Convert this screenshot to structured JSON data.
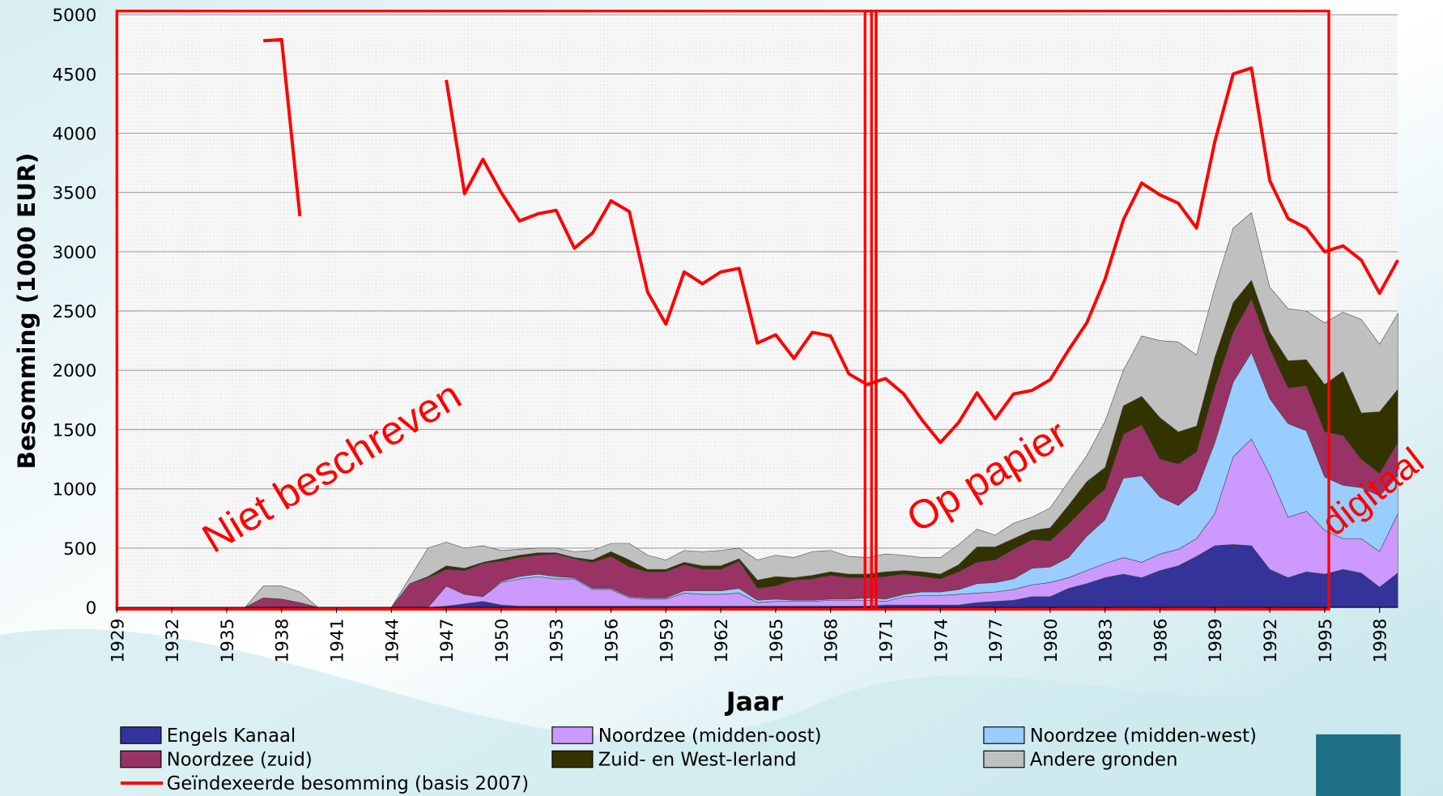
{
  "chart_data": {
    "type": "stacked-area",
    "y_label": "Besomming (1000 EUR)",
    "x_label": "Jaar",
    "annotations": [
      "Niet beschreven",
      "Op papier",
      "digitaal"
    ],
    "x": [
      1929,
      1930,
      1931,
      1932,
      1933,
      1934,
      1935,
      1936,
      1937,
      1938,
      1939,
      1940,
      1941,
      1942,
      1943,
      1944,
      1945,
      1946,
      1947,
      1948,
      1949,
      1950,
      1951,
      1952,
      1953,
      1954,
      1955,
      1956,
      1957,
      1958,
      1959,
      1960,
      1961,
      1962,
      1963,
      1964,
      1965,
      1966,
      1967,
      1968,
      1969,
      1970,
      1971,
      1972,
      1973,
      1974,
      1975,
      1976,
      1977,
      1978,
      1979,
      1980,
      1981,
      1982,
      1983,
      1984,
      1985,
      1986,
      1987,
      1988,
      1989,
      1990,
      1991,
      1992,
      1993,
      1994,
      1995,
      1996,
      1997,
      1998,
      1999
    ],
    "xlim": [
      1929,
      1999
    ],
    "xticks": [
      1929,
      1932,
      1935,
      1938,
      1941,
      1944,
      1947,
      1950,
      1953,
      1956,
      1959,
      1962,
      1965,
      1968,
      1971,
      1974,
      1977,
      1980,
      1983,
      1986,
      1989,
      1992,
      1995,
      1998
    ],
    "ylim": [
      0,
      5000
    ],
    "yticks": [
      0,
      500,
      1000,
      1500,
      2000,
      2500,
      3000,
      3500,
      4000,
      4500,
      5000
    ],
    "grid": true,
    "series": [
      {
        "name": "Engels Kanaal",
        "color": "#333399",
        "values": [
          0,
          0,
          0,
          0,
          0,
          0,
          0,
          0,
          0,
          0,
          0,
          0,
          0,
          0,
          0,
          0,
          0,
          0,
          10,
          30,
          50,
          20,
          10,
          10,
          10,
          10,
          10,
          10,
          10,
          10,
          10,
          10,
          10,
          10,
          10,
          10,
          10,
          10,
          10,
          10,
          10,
          10,
          20,
          20,
          20,
          20,
          20,
          40,
          50,
          60,
          90,
          90,
          160,
          200,
          250,
          280,
          250,
          310,
          350,
          430,
          520,
          530,
          520,
          320,
          250,
          300,
          280,
          320,
          290,
          170,
          290
        ]
      },
      {
        "name": "Noordzee (midden-oost)",
        "color": "#cc99ff",
        "values": [
          0,
          0,
          0,
          0,
          0,
          0,
          0,
          0,
          0,
          0,
          0,
          0,
          0,
          0,
          0,
          0,
          0,
          0,
          170,
          80,
          40,
          190,
          230,
          250,
          230,
          230,
          140,
          140,
          70,
          60,
          60,
          110,
          100,
          100,
          110,
          30,
          40,
          40,
          40,
          50,
          50,
          50,
          30,
          70,
          80,
          80,
          90,
          80,
          80,
          90,
          100,
          120,
          90,
          110,
          120,
          140,
          130,
          140,
          140,
          150,
          270,
          740,
          900,
          800,
          510,
          510,
          370,
          260,
          290,
          300,
          500
        ]
      },
      {
        "name": "Noordzee (midden-west)",
        "color": "#99ccff",
        "values": [
          0,
          0,
          0,
          0,
          0,
          0,
          0,
          0,
          0,
          0,
          0,
          0,
          0,
          0,
          0,
          0,
          0,
          0,
          0,
          0,
          0,
          10,
          20,
          20,
          20,
          10,
          10,
          10,
          10,
          10,
          10,
          20,
          30,
          30,
          40,
          20,
          20,
          10,
          10,
          10,
          10,
          20,
          20,
          20,
          30,
          30,
          40,
          80,
          80,
          90,
          140,
          130,
          170,
          290,
          370,
          670,
          730,
          480,
          370,
          410,
          600,
          630,
          730,
          640,
          790,
          680,
          450,
          450,
          430,
          470,
          320
        ]
      },
      {
        "name": "Noordzee (zuid)",
        "color": "#993366",
        "values": [
          0,
          0,
          0,
          0,
          0,
          0,
          0,
          0,
          80,
          70,
          40,
          0,
          0,
          0,
          0,
          0,
          200,
          250,
          140,
          200,
          280,
          170,
          160,
          160,
          190,
          160,
          220,
          270,
          250,
          220,
          220,
          220,
          180,
          180,
          230,
          100,
          110,
          170,
          180,
          200,
          180,
          170,
          190,
          170,
          130,
          110,
          150,
          180,
          190,
          250,
          240,
          220,
          280,
          260,
          260,
          370,
          430,
          320,
          350,
          320,
          460,
          420,
          450,
          420,
          300,
          380,
          380,
          420,
          240,
          190,
          280
        ]
      },
      {
        "name": "Zuid- en West-Ierland",
        "color": "#333300",
        "values": [
          0,
          0,
          0,
          0,
          0,
          0,
          0,
          0,
          0,
          0,
          0,
          0,
          0,
          0,
          0,
          0,
          0,
          10,
          30,
          20,
          10,
          20,
          20,
          20,
          10,
          10,
          20,
          40,
          60,
          20,
          20,
          20,
          30,
          30,
          20,
          70,
          80,
          20,
          30,
          30,
          30,
          30,
          40,
          30,
          40,
          40,
          60,
          130,
          110,
          90,
          80,
          110,
          160,
          200,
          180,
          240,
          240,
          350,
          270,
          220,
          260,
          250,
          160,
          140,
          230,
          220,
          400,
          540,
          390,
          520,
          450
        ]
      },
      {
        "name": "Andere gronden",
        "color": "#c0c0c0",
        "values": [
          0,
          0,
          0,
          0,
          0,
          0,
          0,
          0,
          100,
          110,
          90,
          0,
          0,
          0,
          0,
          0,
          50,
          240,
          200,
          170,
          140,
          70,
          50,
          40,
          40,
          50,
          80,
          70,
          140,
          120,
          80,
          100,
          120,
          130,
          90,
          170,
          180,
          170,
          200,
          180,
          150,
          140,
          150,
          130,
          120,
          140,
          170,
          150,
          100,
          130,
          110,
          170,
          200,
          220,
          390,
          300,
          510,
          650,
          760,
          600,
          590,
          630,
          570,
          380,
          440,
          410,
          520,
          500,
          790,
          570,
          640
        ]
      },
      {
        "name": "Geïndexeerde besomming (basis 2007)",
        "color": "#ff0000",
        "type": "line",
        "values": [
          null,
          null,
          null,
          null,
          null,
          null,
          null,
          null,
          4780,
          4790,
          3300,
          null,
          null,
          null,
          null,
          null,
          null,
          null,
          4450,
          3490,
          3780,
          3500,
          3260,
          3320,
          3350,
          3030,
          3160,
          3430,
          3340,
          2660,
          2390,
          2830,
          2730,
          2830,
          2860,
          2230,
          2300,
          2100,
          2320,
          2290,
          1970,
          1880,
          1930,
          1800,
          1580,
          1390,
          1560,
          1810,
          1590,
          1800,
          1830,
          1920,
          2170,
          2400,
          2770,
          3270,
          3580,
          3480,
          3410,
          3200,
          3930,
          4500,
          4550,
          3600,
          3280,
          3200,
          3000,
          3050,
          2930,
          2650,
          2930
        ]
      }
    ]
  }
}
